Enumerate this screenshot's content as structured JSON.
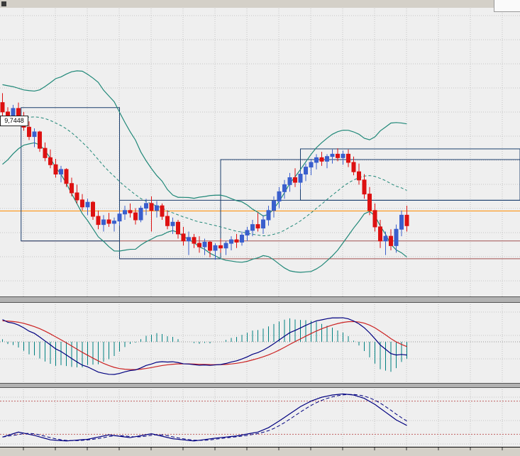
{
  "window": {
    "price_tag": {
      "text": "9,7448"
    }
  },
  "chart_data": {
    "type": "candlestick",
    "title": "",
    "axes": {
      "price_range": [
        9.5947,
        9.8408
      ],
      "bars_visible": 77,
      "grid": "dotted"
    },
    "candles": [
      [
        9.76,
        9.768,
        9.748,
        9.752
      ],
      [
        9.752,
        9.756,
        9.74,
        9.744
      ],
      [
        9.744,
        9.758,
        9.742,
        9.755
      ],
      [
        9.755,
        9.76,
        9.744,
        9.747
      ],
      [
        9.747,
        9.752,
        9.736,
        9.739
      ],
      [
        9.739,
        9.744,
        9.728,
        9.731
      ],
      [
        9.731,
        9.738,
        9.722,
        9.735
      ],
      [
        9.735,
        9.736,
        9.718,
        9.721
      ],
      [
        9.721,
        9.726,
        9.71,
        9.713
      ],
      [
        9.713,
        9.72,
        9.704,
        9.707
      ],
      [
        9.707,
        9.712,
        9.696,
        9.699
      ],
      [
        9.699,
        9.706,
        9.692,
        9.703
      ],
      [
        9.703,
        9.704,
        9.688,
        9.691
      ],
      [
        9.691,
        9.696,
        9.68,
        9.683
      ],
      [
        9.683,
        9.69,
        9.674,
        9.677
      ],
      [
        9.677,
        9.682,
        9.668,
        9.671
      ],
      [
        9.671,
        9.678,
        9.664,
        9.675
      ],
      [
        9.675,
        9.676,
        9.66,
        9.663
      ],
      [
        9.663,
        9.668,
        9.652,
        9.656
      ],
      [
        9.656,
        9.664,
        9.65,
        9.66
      ],
      [
        9.66,
        9.666,
        9.654,
        9.657
      ],
      [
        9.657,
        9.662,
        9.65,
        9.659
      ],
      [
        9.659,
        9.668,
        9.655,
        9.665
      ],
      [
        9.665,
        9.672,
        9.66,
        9.668
      ],
      [
        9.668,
        9.674,
        9.662,
        9.666
      ],
      [
        9.666,
        9.67,
        9.656,
        9.66
      ],
      [
        9.66,
        9.672,
        9.658,
        9.67
      ],
      [
        9.67,
        9.678,
        9.664,
        9.674
      ],
      [
        9.674,
        9.68,
        9.65,
        9.668
      ],
      [
        9.668,
        9.676,
        9.662,
        9.672
      ],
      [
        9.672,
        9.674,
        9.66,
        9.663
      ],
      [
        9.663,
        9.668,
        9.652,
        9.655
      ],
      [
        9.655,
        9.662,
        9.648,
        9.658
      ],
      [
        9.658,
        9.66,
        9.644,
        9.648
      ],
      [
        9.648,
        9.654,
        9.638,
        9.642
      ],
      [
        9.642,
        9.65,
        9.63,
        9.645
      ],
      [
        9.645,
        9.648,
        9.636,
        9.64
      ],
      [
        9.64,
        9.646,
        9.632,
        9.637
      ],
      [
        9.637,
        9.644,
        9.63,
        9.641
      ],
      [
        9.641,
        9.642,
        9.628,
        9.634
      ],
      [
        9.634,
        9.64,
        9.626,
        9.638
      ],
      [
        9.638,
        9.644,
        9.632,
        9.636
      ],
      [
        9.636,
        9.642,
        9.63,
        9.64
      ],
      [
        9.64,
        9.646,
        9.634,
        9.643
      ],
      [
        9.643,
        9.648,
        9.636,
        9.641
      ],
      [
        9.641,
        9.65,
        9.638,
        9.647
      ],
      [
        9.647,
        9.654,
        9.642,
        9.651
      ],
      [
        9.651,
        9.66,
        9.646,
        9.656
      ],
      [
        9.656,
        9.666,
        9.65,
        9.653
      ],
      [
        9.653,
        9.664,
        9.648,
        9.66
      ],
      [
        9.66,
        9.672,
        9.655,
        9.668
      ],
      [
        9.668,
        9.68,
        9.662,
        9.676
      ],
      [
        9.676,
        9.688,
        9.67,
        9.684
      ],
      [
        9.684,
        9.694,
        9.678,
        9.69
      ],
      [
        9.69,
        9.7,
        9.684,
        9.696
      ],
      [
        9.696,
        9.704,
        9.688,
        9.692
      ],
      [
        9.692,
        9.702,
        9.686,
        9.699
      ],
      [
        9.699,
        9.708,
        9.693,
        9.705
      ],
      [
        9.705,
        9.712,
        9.698,
        9.709
      ],
      [
        9.709,
        9.716,
        9.703,
        9.713
      ],
      [
        9.713,
        9.718,
        9.706,
        9.71
      ],
      [
        9.71,
        9.716,
        9.704,
        9.714
      ],
      [
        9.714,
        9.72,
        9.708,
        9.716
      ],
      [
        9.716,
        9.721,
        9.71,
        9.713
      ],
      [
        9.713,
        9.719,
        9.707,
        9.716
      ],
      [
        9.716,
        9.72,
        9.705,
        9.709
      ],
      [
        9.709,
        9.714,
        9.698,
        9.701
      ],
      [
        9.701,
        9.708,
        9.69,
        9.694
      ],
      [
        9.694,
        9.699,
        9.678,
        9.682
      ],
      [
        9.682,
        9.688,
        9.664,
        9.668
      ],
      [
        9.668,
        9.674,
        9.65,
        9.654
      ],
      [
        9.654,
        9.66,
        9.636,
        9.642
      ],
      [
        9.642,
        9.65,
        9.63,
        9.646
      ],
      [
        9.646,
        9.652,
        9.634,
        9.638
      ],
      [
        9.638,
        9.656,
        9.632,
        9.652
      ],
      [
        9.652,
        9.668,
        9.646,
        9.664
      ],
      [
        9.664,
        9.672,
        9.65,
        9.655
      ]
    ],
    "lead_in_closes": [
      9.7,
      9.704,
      9.707,
      9.705,
      9.71,
      9.714,
      9.712,
      9.718,
      9.722,
      9.726,
      9.73,
      9.728,
      9.734,
      9.739,
      9.743,
      9.747,
      9.745,
      9.75,
      9.755,
      9.758,
      9.761,
      9.764,
      9.762,
      9.766
    ],
    "indicators": [
      {
        "type": "bollinger",
        "period": 20,
        "deviation": 2,
        "color": "#208878"
      },
      {
        "type": "macd",
        "fast": 12,
        "slow": 26,
        "signal_period": 9,
        "colors": {
          "macd": "#000080",
          "signal": "#cc2222",
          "histogram": "#008080"
        }
      },
      {
        "type": "stochastic",
        "k": 14,
        "d": 3,
        "slowing": 3,
        "levels": [
          20,
          80
        ],
        "colors": {
          "k": "#000080",
          "d": "#000080",
          "levels": "#c06060"
        },
        "k_keypoints": [
          [
            0,
            15
          ],
          [
            3,
            24
          ],
          [
            6,
            18
          ],
          [
            9,
            10
          ],
          [
            12,
            8
          ],
          [
            16,
            11
          ],
          [
            20,
            19
          ],
          [
            24,
            14
          ],
          [
            28,
            21
          ],
          [
            32,
            12
          ],
          [
            36,
            8
          ],
          [
            40,
            13
          ],
          [
            44,
            17
          ],
          [
            48,
            24
          ],
          [
            50,
            32
          ],
          [
            52,
            44
          ],
          [
            54,
            57
          ],
          [
            56,
            70
          ],
          [
            58,
            80
          ],
          [
            60,
            87
          ],
          [
            62,
            91
          ],
          [
            64,
            93
          ],
          [
            66,
            91
          ],
          [
            68,
            85
          ],
          [
            70,
            74
          ],
          [
            72,
            60
          ],
          [
            74,
            46
          ],
          [
            76,
            36
          ]
        ]
      }
    ],
    "overlays": {
      "rect_color": "#1c3f6e",
      "rectangles": [
        {
          "i1": 3.5,
          "i2": 22,
          "p1": 9.7557,
          "p2": 9.642
        },
        {
          "i1": 22,
          "i2": 41,
          "p1": 9.6767,
          "p2": 9.6268
        },
        {
          "i1": 41,
          "i2": "end",
          "p1": 9.7114,
          "p2": 9.6767
        },
        {
          "i1": 56,
          "i2": "end",
          "p1": 9.7205,
          "p2": 9.6767
        }
      ],
      "hlines": [
        {
          "p": 9.6676,
          "i1": "start",
          "i2": "end",
          "color": "#ff8c00"
        },
        {
          "p": 9.642,
          "i1": 3.5,
          "i2": "end",
          "color": "#a05050"
        },
        {
          "p": 9.6268,
          "i1": 22,
          "i2": "end",
          "color": "#a05050"
        }
      ]
    },
    "colors": {
      "background": "#efefef",
      "grid": "#c6c6c6",
      "bull": "#3a5fcd",
      "bear": "#dd1111",
      "bands": "#208878",
      "frame": "#000000",
      "splitter": "#b2b2b2",
      "chrome": "#d4d0c8"
    }
  }
}
